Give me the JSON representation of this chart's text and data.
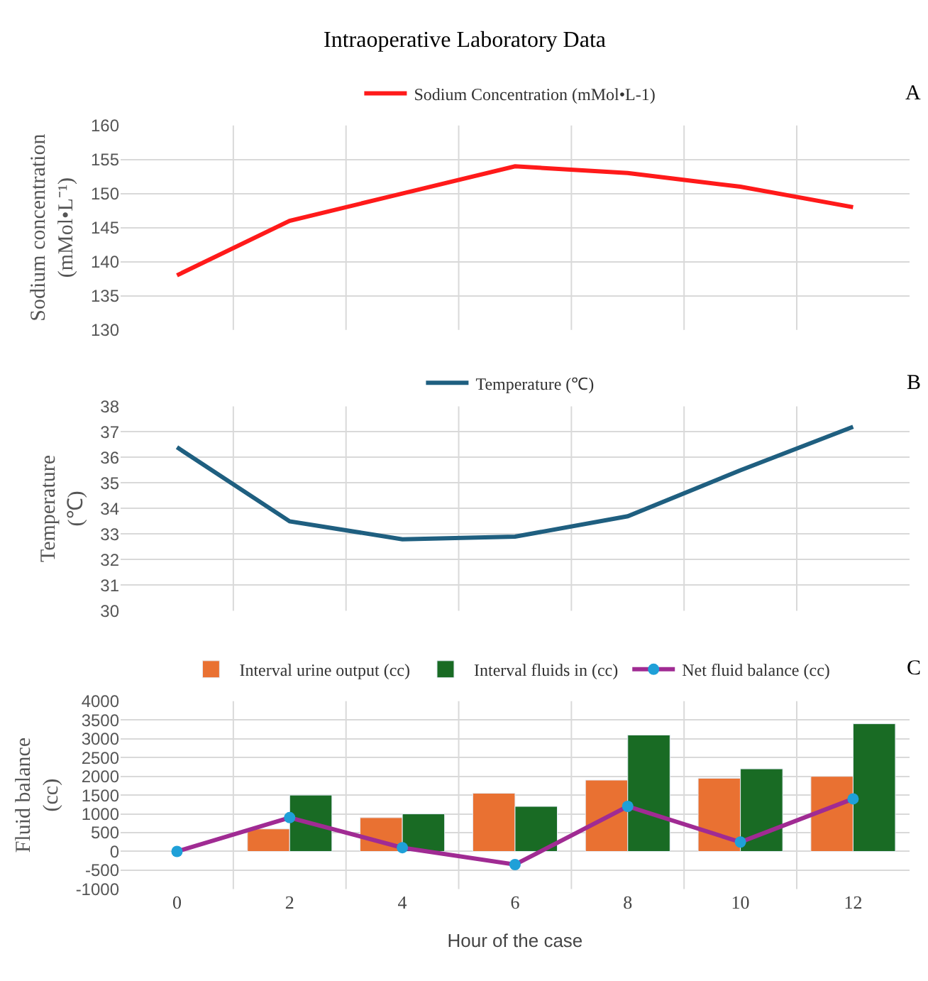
{
  "chart_data": [
    {
      "type": "line",
      "title": "Intraoperative Laboratory Data",
      "ylabel": "Sodium concentration (mMol•L⁻¹)",
      "annotations": [
        "A"
      ],
      "categories": [
        null,
        null,
        null,
        null,
        null,
        null,
        null
      ],
      "series": [
        {
          "name": "Sodium Concentration (mMol•L-1)",
          "color": "#ff1a1a",
          "values": [
            138,
            146,
            150,
            154,
            153,
            151,
            148
          ]
        }
      ],
      "ylim": [
        130,
        160
      ],
      "yticks": [
        130,
        135,
        140,
        145,
        150,
        155,
        160
      ],
      "grid": true,
      "legend": "top",
      "tick_labels": "y"
    },
    {
      "type": "line",
      "ylabel": "Temperature (℃)",
      "annotations": [
        "B"
      ],
      "categories": [
        null,
        null,
        null,
        null,
        null,
        null,
        null
      ],
      "series": [
        {
          "name": "Temperature (℃)",
          "color": "#1f5f80",
          "values": [
            36.4,
            33.5,
            32.8,
            32.9,
            33.7,
            35.5,
            37.2
          ]
        }
      ],
      "ylim": [
        30,
        38
      ],
      "yticks": [
        30,
        31,
        32,
        33,
        34,
        35,
        36,
        37,
        38
      ],
      "grid": true,
      "legend": "top",
      "tick_labels": "y"
    },
    {
      "type": "bar",
      "xlabel": "Hour of the case",
      "ylabel": "Fluid balance (cc)",
      "annotations": [
        "C"
      ],
      "categories": [
        "0",
        "2",
        "4",
        "6",
        "8",
        "10",
        "12"
      ],
      "series": [
        {
          "name": "Interval urine output (cc)",
          "color": "#e97132",
          "values": [
            null,
            600,
            900,
            1550,
            1900,
            1950,
            2000
          ]
        },
        {
          "name": "Interval fluids in (cc)",
          "color": "#196b24",
          "values": [
            null,
            1500,
            1000,
            1200,
            3100,
            2200,
            3400
          ]
        },
        {
          "name": "Net fluid balance (cc)",
          "type": "line",
          "color": "#a02b93",
          "colors": [
            "#1fa0d8",
            "#1fa0d8",
            "#1fa0d8",
            "#1fa0d8",
            "#1fa0d8",
            "#1fa0d8",
            "#1fa0d8"
          ],
          "values": [
            0,
            900,
            100,
            -350,
            1200,
            250,
            1400
          ]
        }
      ],
      "ylim": [
        -1000,
        4000
      ],
      "yticks": [
        -1000,
        -500,
        0,
        500,
        1000,
        1500,
        2000,
        2500,
        3000,
        3500,
        4000
      ],
      "grid": true,
      "legend": "top",
      "marker": "circle"
    }
  ]
}
